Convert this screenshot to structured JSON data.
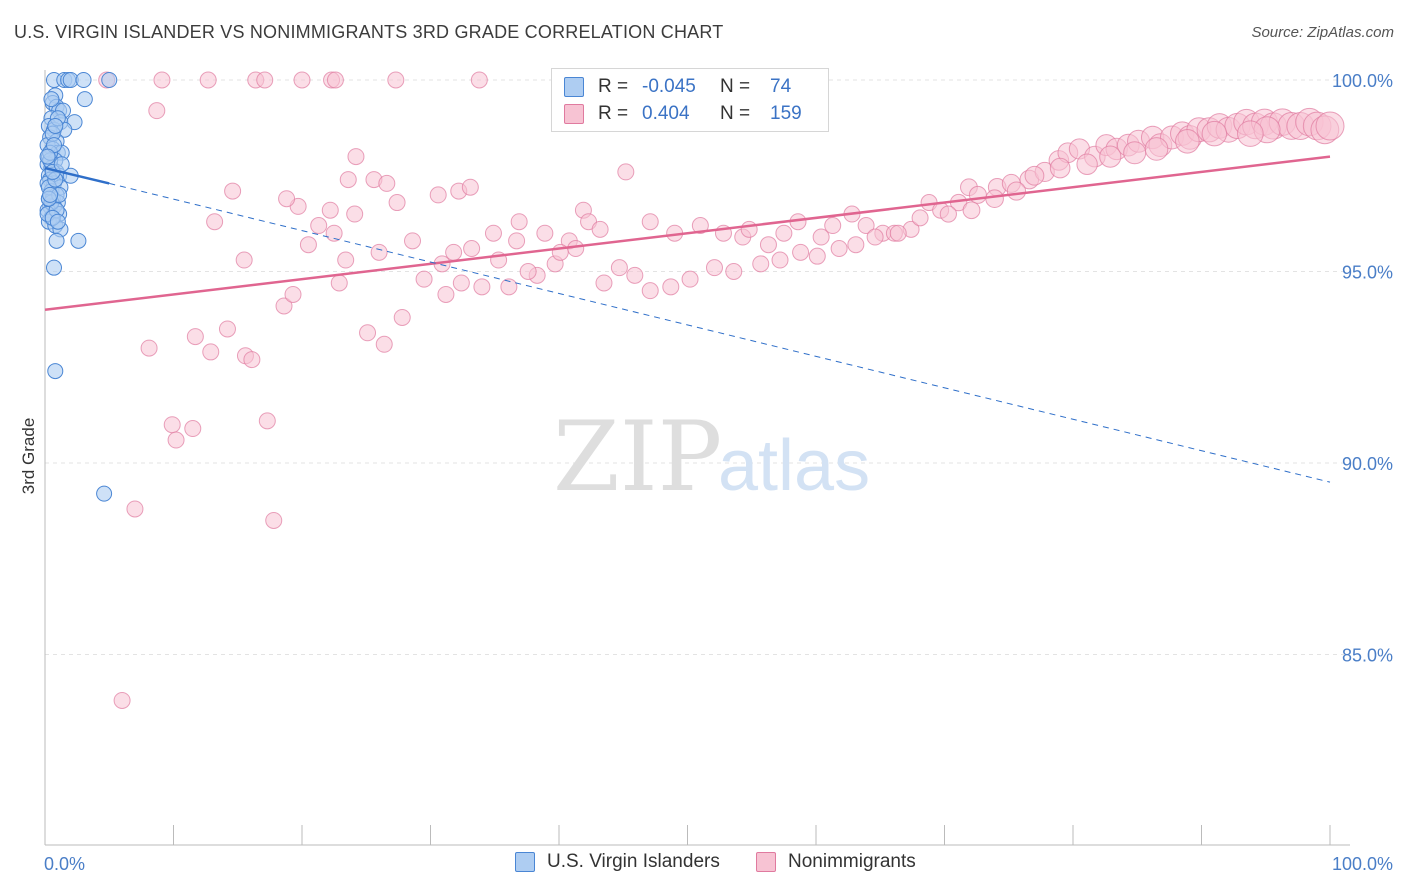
{
  "header": {
    "title": "U.S. VIRGIN ISLANDER VS NONIMMIGRANTS 3RD GRADE CORRELATION CHART",
    "source": "Source: ZipAtlas.com"
  },
  "watermark": {
    "zip": "ZIP",
    "atlas": "atlas"
  },
  "legend": {
    "rows": [
      {
        "r_label": "R =",
        "r_value": "-0.045",
        "n_label": "N =",
        "n_value": "74"
      },
      {
        "r_label": "R =",
        "r_value": "0.404",
        "n_label": "N =",
        "n_value": "159"
      }
    ]
  },
  "bottom_legend": {
    "series1": "U.S. Virgin Islanders",
    "series2": "Nonimmigrants"
  },
  "colors": {
    "blue_fill": "#aecdf2",
    "blue_stroke": "#4a86d4",
    "blue_line": "#2f6fc9",
    "pink_fill": "#f7c3d3",
    "pink_stroke": "#e07a9f",
    "pink_line": "#e06590",
    "grid": "#e3e3e3",
    "tick_text": "#4a7ec7"
  },
  "chart_data": {
    "type": "scatter",
    "title": "U.S. VIRGIN ISLANDER VS NONIMMIGRANTS 3RD GRADE CORRELATION CHART",
    "xlabel": "",
    "ylabel": "3rd Grade",
    "xlim": [
      0,
      100
    ],
    "ylim": [
      80,
      100.5
    ],
    "x_tick_labels": [
      "0.0%",
      "100.0%"
    ],
    "y_ticks": [
      85,
      90,
      95,
      100
    ],
    "y_tick_labels": [
      "85.0%",
      "90.0%",
      "95.0%",
      "100.0%"
    ],
    "grid": true,
    "legend_position": "top-center",
    "series": [
      {
        "name": "U.S. Virgin Islanders",
        "color": "#4a86d4",
        "r": -0.045,
        "n": 74,
        "trend": {
          "x": [
            0,
            5,
            100
          ],
          "y": [
            97.7,
            97.3,
            89.5
          ],
          "solid_until_x": 5
        },
        "points": [
          [
            0.7,
            100
          ],
          [
            1.5,
            100
          ],
          [
            1.8,
            100
          ],
          [
            2.0,
            100
          ],
          [
            3.0,
            100
          ],
          [
            5.0,
            100
          ],
          [
            0.8,
            99.6
          ],
          [
            3.1,
            99.5
          ],
          [
            0.6,
            99.4
          ],
          [
            0.9,
            99.3
          ],
          [
            1.1,
            99.2
          ],
          [
            1.4,
            99.2
          ],
          [
            0.5,
            99.0
          ],
          [
            1.2,
            98.9
          ],
          [
            2.3,
            98.9
          ],
          [
            0.3,
            98.8
          ],
          [
            0.7,
            98.7
          ],
          [
            1.5,
            98.7
          ],
          [
            0.4,
            98.5
          ],
          [
            0.9,
            98.4
          ],
          [
            0.2,
            98.3
          ],
          [
            0.6,
            98.2
          ],
          [
            1.0,
            98.1
          ],
          [
            1.3,
            98.1
          ],
          [
            0.3,
            98.0
          ],
          [
            0.8,
            97.9
          ],
          [
            0.2,
            97.8
          ],
          [
            0.5,
            97.7
          ],
          [
            0.9,
            97.6
          ],
          [
            0.3,
            97.5
          ],
          [
            1.1,
            97.5
          ],
          [
            2.0,
            97.5
          ],
          [
            0.4,
            97.4
          ],
          [
            0.7,
            97.3
          ],
          [
            0.2,
            97.3
          ],
          [
            1.2,
            97.2
          ],
          [
            0.5,
            97.1
          ],
          [
            0.9,
            97.0
          ],
          [
            0.3,
            96.9
          ],
          [
            0.6,
            96.9
          ],
          [
            1.0,
            96.8
          ],
          [
            0.4,
            96.7
          ],
          [
            0.7,
            96.7
          ],
          [
            0.2,
            96.6
          ],
          [
            1.1,
            96.5
          ],
          [
            0.5,
            96.4
          ],
          [
            0.3,
            96.3
          ],
          [
            0.8,
            96.2
          ],
          [
            1.2,
            96.1
          ],
          [
            0.9,
            95.8
          ],
          [
            2.6,
            95.8
          ],
          [
            0.7,
            95.1
          ],
          [
            0.8,
            92.4
          ],
          [
            4.6,
            89.2
          ],
          [
            0.4,
            97.9
          ],
          [
            0.6,
            98.6
          ],
          [
            1.0,
            99.0
          ],
          [
            0.3,
            97.2
          ],
          [
            0.5,
            96.8
          ],
          [
            0.8,
            97.4
          ],
          [
            0.4,
            98.1
          ],
          [
            0.6,
            97.6
          ],
          [
            1.1,
            97.0
          ],
          [
            0.2,
            96.5
          ],
          [
            0.7,
            98.3
          ],
          [
            0.9,
            96.6
          ],
          [
            0.5,
            99.5
          ],
          [
            1.3,
            97.8
          ],
          [
            0.3,
            96.9
          ],
          [
            0.6,
            96.4
          ],
          [
            0.8,
            98.8
          ],
          [
            0.4,
            97.0
          ],
          [
            1.0,
            96.3
          ],
          [
            0.2,
            98.0
          ]
        ]
      },
      {
        "name": "Nonimmigrants",
        "color": "#e07a9f",
        "r": 0.404,
        "n": 159,
        "trend": {
          "x": [
            0,
            100
          ],
          "y": [
            94.0,
            98.0
          ]
        },
        "points": [
          [
            4.8,
            100
          ],
          [
            9.1,
            100
          ],
          [
            12.7,
            100
          ],
          [
            16.4,
            100
          ],
          [
            17.1,
            100
          ],
          [
            20.0,
            100
          ],
          [
            22.3,
            100
          ],
          [
            22.6,
            100
          ],
          [
            27.3,
            100
          ],
          [
            33.8,
            100
          ],
          [
            8.7,
            99.2
          ],
          [
            19.7,
            96.7
          ],
          [
            21.3,
            96.2
          ],
          [
            22.2,
            96.6
          ],
          [
            22.5,
            96.0
          ],
          [
            23.6,
            97.4
          ],
          [
            24.2,
            98.0
          ],
          [
            25.6,
            97.4
          ],
          [
            26.6,
            97.3
          ],
          [
            27.4,
            96.8
          ],
          [
            30.6,
            97.0
          ],
          [
            32.2,
            97.1
          ],
          [
            33.1,
            97.2
          ],
          [
            36.9,
            96.3
          ],
          [
            40.8,
            95.8
          ],
          [
            41.9,
            96.6
          ],
          [
            42.3,
            96.3
          ],
          [
            43.2,
            96.1
          ],
          [
            45.2,
            97.6
          ],
          [
            47.1,
            96.3
          ],
          [
            49.0,
            96.0
          ],
          [
            51.0,
            96.2
          ],
          [
            52.8,
            96.0
          ],
          [
            54.3,
            95.9
          ],
          [
            54.8,
            96.1
          ],
          [
            56.3,
            95.7
          ],
          [
            57.5,
            96.0
          ],
          [
            58.6,
            96.3
          ],
          [
            60.4,
            95.9
          ],
          [
            61.3,
            96.2
          ],
          [
            62.8,
            96.5
          ],
          [
            63.9,
            96.2
          ],
          [
            65.2,
            96.0
          ],
          [
            66.1,
            96.0
          ],
          [
            67.4,
            96.1
          ],
          [
            68.8,
            96.8
          ],
          [
            69.7,
            96.6
          ],
          [
            71.1,
            96.8
          ],
          [
            71.9,
            97.2
          ],
          [
            72.6,
            97.0
          ],
          [
            74.1,
            97.2
          ],
          [
            75.2,
            97.3
          ],
          [
            76.6,
            97.4
          ],
          [
            77.8,
            97.6
          ],
          [
            78.9,
            97.9
          ],
          [
            79.6,
            98.1
          ],
          [
            80.5,
            98.2
          ],
          [
            81.7,
            98.0
          ],
          [
            82.6,
            98.3
          ],
          [
            83.4,
            98.2
          ],
          [
            84.3,
            98.3
          ],
          [
            85.1,
            98.4
          ],
          [
            86.2,
            98.5
          ],
          [
            86.8,
            98.3
          ],
          [
            87.7,
            98.5
          ],
          [
            88.5,
            98.6
          ],
          [
            89.1,
            98.5
          ],
          [
            89.8,
            98.7
          ],
          [
            90.6,
            98.7
          ],
          [
            91.4,
            98.8
          ],
          [
            92.1,
            98.7
          ],
          [
            92.8,
            98.8
          ],
          [
            93.5,
            98.9
          ],
          [
            94.2,
            98.8
          ],
          [
            94.9,
            98.9
          ],
          [
            95.6,
            98.8
          ],
          [
            96.3,
            98.9
          ],
          [
            97.0,
            98.8
          ],
          [
            97.7,
            98.8
          ],
          [
            98.4,
            98.9
          ],
          [
            99.0,
            98.8
          ],
          [
            99.6,
            98.7
          ],
          [
            100,
            98.8
          ],
          [
            95.1,
            98.7
          ],
          [
            93.8,
            98.6
          ],
          [
            91.0,
            98.6
          ],
          [
            88.9,
            98.4
          ],
          [
            86.5,
            98.2
          ],
          [
            84.8,
            98.1
          ],
          [
            82.9,
            98.0
          ],
          [
            81.1,
            97.8
          ],
          [
            79.0,
            97.7
          ],
          [
            77.0,
            97.5
          ],
          [
            75.6,
            97.1
          ],
          [
            73.9,
            96.9
          ],
          [
            72.1,
            96.6
          ],
          [
            70.3,
            96.5
          ],
          [
            68.1,
            96.4
          ],
          [
            66.4,
            96.0
          ],
          [
            64.6,
            95.9
          ],
          [
            63.1,
            95.7
          ],
          [
            61.8,
            95.6
          ],
          [
            60.1,
            95.4
          ],
          [
            58.8,
            95.5
          ],
          [
            57.2,
            95.3
          ],
          [
            55.7,
            95.2
          ],
          [
            53.6,
            95.0
          ],
          [
            52.1,
            95.1
          ],
          [
            50.2,
            94.8
          ],
          [
            48.7,
            94.6
          ],
          [
            47.1,
            94.5
          ],
          [
            45.9,
            94.9
          ],
          [
            44.7,
            95.1
          ],
          [
            43.5,
            94.7
          ],
          [
            41.3,
            95.6
          ],
          [
            39.7,
            95.2
          ],
          [
            38.3,
            94.9
          ],
          [
            37.6,
            95.0
          ],
          [
            36.1,
            94.6
          ],
          [
            34.9,
            96.0
          ],
          [
            33.2,
            95.6
          ],
          [
            31.8,
            95.5
          ],
          [
            30.9,
            95.2
          ],
          [
            28.6,
            95.8
          ],
          [
            26.0,
            95.5
          ],
          [
            24.1,
            96.5
          ],
          [
            23.4,
            95.3
          ],
          [
            22.9,
            94.7
          ],
          [
            20.5,
            95.7
          ],
          [
            18.8,
            96.9
          ],
          [
            15.5,
            95.3
          ],
          [
            14.6,
            97.1
          ],
          [
            13.2,
            96.3
          ],
          [
            11.7,
            93.3
          ],
          [
            9.9,
            91.0
          ],
          [
            7.0,
            88.8
          ],
          [
            6.0,
            83.8
          ],
          [
            8.1,
            93.0
          ],
          [
            10.2,
            90.6
          ],
          [
            11.5,
            90.9
          ],
          [
            12.9,
            92.9
          ],
          [
            14.2,
            93.5
          ],
          [
            15.6,
            92.8
          ],
          [
            16.1,
            92.7
          ],
          [
            17.3,
            91.1
          ],
          [
            17.8,
            88.5
          ],
          [
            18.6,
            94.1
          ],
          [
            19.3,
            94.4
          ],
          [
            25.1,
            93.4
          ],
          [
            26.4,
            93.1
          ],
          [
            27.8,
            93.8
          ],
          [
            29.5,
            94.8
          ],
          [
            31.2,
            94.4
          ],
          [
            32.4,
            94.7
          ],
          [
            34.0,
            94.6
          ],
          [
            35.3,
            95.3
          ],
          [
            36.7,
            95.8
          ],
          [
            38.9,
            96.0
          ],
          [
            40.1,
            95.5
          ]
        ]
      }
    ]
  }
}
